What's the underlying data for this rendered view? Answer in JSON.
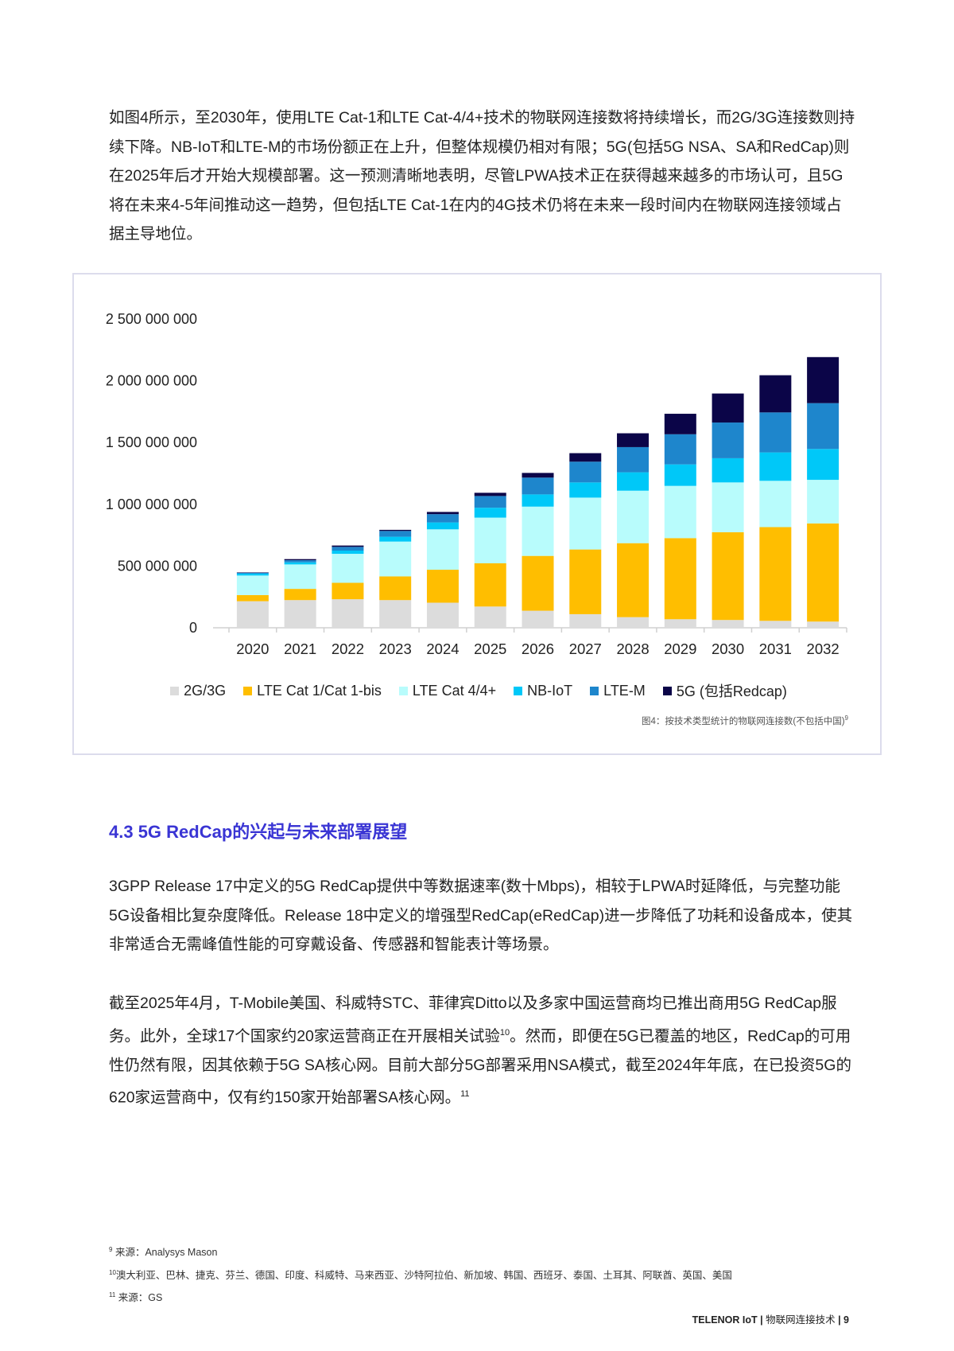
{
  "intro_paragraph": "如图4所示，至2030年，使用LTE Cat-1和LTE Cat-4/4+技术的物联网连接数将持续增长，而2G/3G连接数则持续下降。NB-IoT和LTE-M的市场份额正在上升，但整体规模仍相对有限；5G(包括5G NSA、SA和RedCap)则在2025年后才开始大规模部署。这一预测清晰地表明，尽管LPWA技术正在获得越来越多的市场认可，且5G将在未来4-5年间推动这一趋势，但包括LTE Cat-1在内的4G技术仍将在未来一段时间内在物联网连接领域占据主导地位。",
  "chart_data": {
    "type": "bar",
    "stacked": true,
    "categories": [
      "2020",
      "2021",
      "2022",
      "2023",
      "2024",
      "2025",
      "2026",
      "2027",
      "2028",
      "2029",
      "2030",
      "2031",
      "2032"
    ],
    "ylim": [
      0,
      2500000000
    ],
    "yticks": [
      0,
      500000000,
      1000000000,
      1500000000,
      2000000000,
      2500000000
    ],
    "ytick_labels": [
      "0",
      "500 000 000",
      "1 000 000 000",
      "1 500 000 000",
      "2 000 000 000",
      "2 500 000 000"
    ],
    "grid": false,
    "legend_position": "bottom",
    "series": [
      {
        "name": "2G/3G",
        "color": "#dcdcdc",
        "values": [
          215000000,
          224000000,
          231000000,
          224000000,
          203000000,
          172000000,
          138000000,
          110000000,
          86000000,
          69000000,
          63000000,
          56000000,
          50000000
        ]
      },
      {
        "name": "LTE Cat 1/Cat 1-bis",
        "color": "#ffbe00",
        "values": [
          50000000,
          91000000,
          133000000,
          192000000,
          267000000,
          350000000,
          444000000,
          524000000,
          599000000,
          657000000,
          711000000,
          759000000,
          795000000
        ]
      },
      {
        "name": "LTE Cat 4/4+",
        "color": "#b8fcfc",
        "values": [
          158000000,
          198000000,
          235000000,
          282000000,
          327000000,
          370000000,
          399000000,
          420000000,
          425000000,
          423000000,
          403000000,
          375000000,
          353000000
        ]
      },
      {
        "name": "NB-IoT",
        "color": "#00c8f8",
        "values": [
          15000000,
          17000000,
          26000000,
          39000000,
          56000000,
          80000000,
          99000000,
          123000000,
          149000000,
          174000000,
          196000000,
          230000000,
          250000000
        ]
      },
      {
        "name": "LTE-M",
        "color": "#1e86cc",
        "values": [
          8000000,
          17000000,
          30000000,
          47000000,
          67000000,
          95000000,
          136000000,
          168000000,
          204000000,
          244000000,
          289000000,
          324000000,
          371000000
        ]
      },
      {
        "name": "5G (包括Redcap)",
        "color": "#0b0548",
        "values": [
          2000000,
          9000000,
          11000000,
          9000000,
          18000000,
          26000000,
          38000000,
          69000000,
          112000000,
          166000000,
          235000000,
          301000000,
          373000000
        ]
      }
    ],
    "caption": "图4：按技术类型统计的物联网连接数(不包括中国)",
    "caption_footnote": "9"
  },
  "section_heading": "4.3 5G RedCap的兴起与未来部署展望",
  "paragraph_2": "3GPP Release 17中定义的5G RedCap提供中等数据速率(数十Mbps)，相较于LPWA时延降低，与完整功能5G设备相比复杂度降低。Release 18中定义的增强型RedCap(eRedCap)进一步降低了功耗和设备成本，使其非常适合无需峰值性能的可穿戴设备、传感器和智能表计等场景。",
  "paragraph_3": {
    "part1": "截至2025年4月，T-Mobile美国、科威特STC、菲律宾Ditto以及多家中国运营商均已推出商用5G RedCap服务。此外，全球17个国家约20家运营商正在开展相关试验",
    "ref1": "10",
    "part2": "。然而，即便在5G已覆盖的地区，RedCap的可用性仍然有限，因其依赖于5G SA核心网。目前大部分5G部署采用NSA模式，截至2024年年底，在已投资5G的620家运营商中，仅有约150家开始部署SA核心网。",
    "ref2": "11"
  },
  "footnotes": [
    {
      "num": "9",
      "text": "来源：Analysys Mason"
    },
    {
      "num": "10",
      "text": "澳大利亚、巴林、捷克、芬兰、德国、印度、科威特、马来西亚、沙特阿拉伯、新加坡、韩国、西班牙、泰国、土耳其、阿联酋、英国、美国"
    },
    {
      "num": "11",
      "text": "来源：GS"
    }
  ],
  "footer": {
    "brand": "TELENOR IoT",
    "title": "物联网连接技术",
    "page": "9"
  }
}
